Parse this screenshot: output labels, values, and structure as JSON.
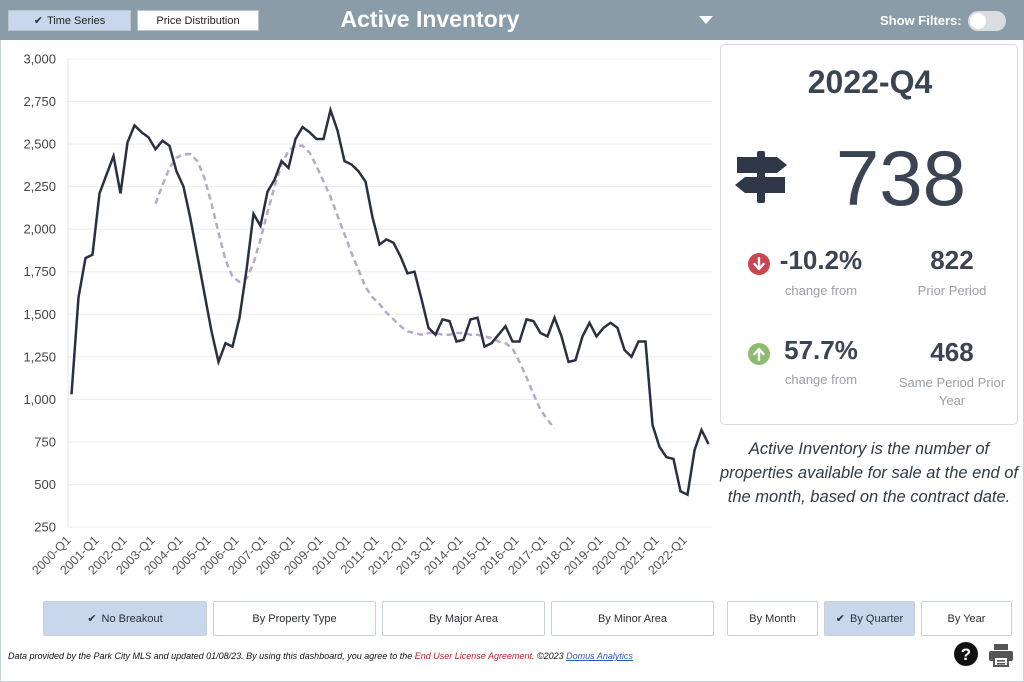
{
  "toolbar": {
    "time_series_label": "Time Series",
    "price_distribution_label": "Price Distribution",
    "title": "Active Inventory",
    "show_filters_label": "Show Filters:"
  },
  "summary": {
    "period": "2022-Q4",
    "value": "738",
    "change1_value": "-10.2%",
    "change1_label": "change from",
    "prior_value": "822",
    "prior_label": "Prior Period",
    "change2_value": "57.7%",
    "change2_label": "change from",
    "yoy_value": "468",
    "yoy_label_line1": "Same Period Prior",
    "yoy_label_line2": "Year",
    "icons": {
      "main": "signpost-icon",
      "down": "arrow-down-circle-icon",
      "up": "arrow-up-circle-icon"
    },
    "colors": {
      "down": "#c9454f",
      "up": "#8dbb6f"
    }
  },
  "description": "Active Inventory is the number of properties available for sale at the end of the month, based on the contract date.",
  "breakdown": {
    "no_breakout": "No Breakout",
    "by_property_type": "By Property Type",
    "by_major_area": "By Major Area",
    "by_minor_area": "By Minor Area",
    "by_month": "By Month",
    "by_quarter": "By Quarter",
    "by_year": "By Year"
  },
  "footer": {
    "prefix": "Data provided by the Park City MLS and updated 01/08/23.  By using this dashboard, you agree to the ",
    "eula": "End User License Agreement",
    "middle": ".  ©2023 ",
    "company": "Domus Analytics"
  },
  "chart_data": {
    "type": "line",
    "ylim": [
      250,
      3000
    ],
    "yticks": [
      250,
      500,
      750,
      1000,
      1250,
      1500,
      1750,
      2000,
      2250,
      2500,
      2750,
      3000
    ],
    "ytick_labels": [
      "250",
      "500",
      "750",
      "1,000",
      "1,250",
      "1,500",
      "1,750",
      "2,000",
      "2,250",
      "2,500",
      "2,750",
      "3,000"
    ],
    "xtick_labels": [
      "2000-Q1",
      "2001-Q1",
      "2002-Q1",
      "2003-Q1",
      "2004-Q1",
      "2005-Q1",
      "2006-Q1",
      "2007-Q1",
      "2008-Q1",
      "2009-Q1",
      "2010-Q1",
      "2011-Q1",
      "2012-Q1",
      "2013-Q1",
      "2014-Q1",
      "2015-Q1",
      "2016-Q1",
      "2017-Q1",
      "2018-Q1",
      "2019-Q1",
      "2020-Q1",
      "2021-Q1",
      "2022-Q1"
    ],
    "series": [
      {
        "style": "solid",
        "color": "#2a3042",
        "values": [
          1030,
          1600,
          1830,
          1850,
          2210,
          2320,
          2430,
          2210,
          2510,
          2610,
          2570,
          2540,
          2470,
          2520,
          2490,
          2340,
          2250,
          2060,
          1840,
          1620,
          1400,
          1220,
          1330,
          1310,
          1480,
          1760,
          2090,
          2020,
          2220,
          2290,
          2400,
          2360,
          2530,
          2600,
          2570,
          2530,
          2530,
          2700,
          2580,
          2400,
          2380,
          2340,
          2280,
          2070,
          1910,
          1940,
          1920,
          1840,
          1740,
          1750,
          1590,
          1420,
          1380,
          1470,
          1460,
          1340,
          1350,
          1470,
          1480,
          1310,
          1330,
          1380,
          1430,
          1340,
          1340,
          1470,
          1460,
          1390,
          1370,
          1480,
          1370,
          1220,
          1230,
          1370,
          1450,
          1370,
          1420,
          1450,
          1420,
          1290,
          1250,
          1340,
          1340,
          850,
          720,
          660,
          650,
          460,
          440,
          700,
          820,
          738
        ],
        "start": "2000-Q1"
      },
      {
        "style": "dashed",
        "color": "#b7a9c9",
        "values": [
          2150,
          2260,
          2360,
          2420,
          2440,
          2440,
          2400,
          2300,
          2150,
          1980,
          1820,
          1720,
          1690,
          1710,
          1800,
          1940,
          2100,
          2250,
          2380,
          2460,
          2490,
          2490,
          2450,
          2370,
          2280,
          2190,
          2080,
          1970,
          1860,
          1760,
          1660,
          1600,
          1560,
          1510,
          1470,
          1430,
          1400,
          1390,
          1380,
          1390,
          1390,
          1380,
          1380,
          1390,
          1390,
          1380,
          1380,
          1370,
          1360,
          1340,
          1330,
          1300,
          1220,
          1130,
          1030,
          940,
          880,
          830
        ],
        "start": "2003-Q1"
      }
    ],
    "grid": true
  }
}
